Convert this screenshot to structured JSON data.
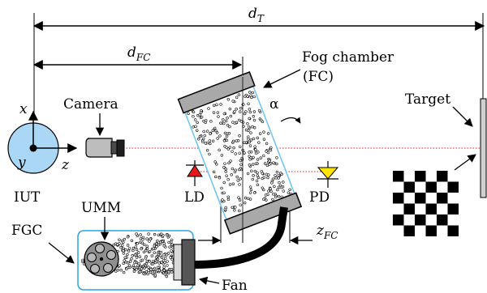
{
  "labels": {
    "d_t": "d",
    "d_t_sub": "T",
    "d_fc": "d",
    "d_fc_sub": "FC",
    "fog_chamber": "Fog chamber",
    "fog_chamber_abbr": "(FC)",
    "alpha": "α",
    "camera": "Camera",
    "target": "Target",
    "axis_x": "x",
    "axis_y": "y",
    "axis_z": "z",
    "iut": "IUT",
    "ld": "LD",
    "pd": "PD",
    "umm": "UMM",
    "fgc": "FGC",
    "fan": "Fan",
    "z_fc": "z",
    "z_fc_sub": "FC"
  },
  "colors": {
    "iut_fill": "#a9d7f5",
    "fog_border": "#6bc4f0",
    "fgc_border": "#2aa4e6",
    "gray_cap": "#a9a9a9",
    "camera_body": "#bdbdbd",
    "laser_diode": "#e31a1c",
    "photodiode": "#ffe600",
    "beam": "#e31a1c"
  },
  "icons": {
    "iut": "sensor-circle-icon",
    "camera": "camera-icon",
    "laser_diode": "laser-diode-icon",
    "photodiode": "photodiode-icon",
    "target": "checkerboard-target-icon",
    "fan": "fan-icon"
  }
}
